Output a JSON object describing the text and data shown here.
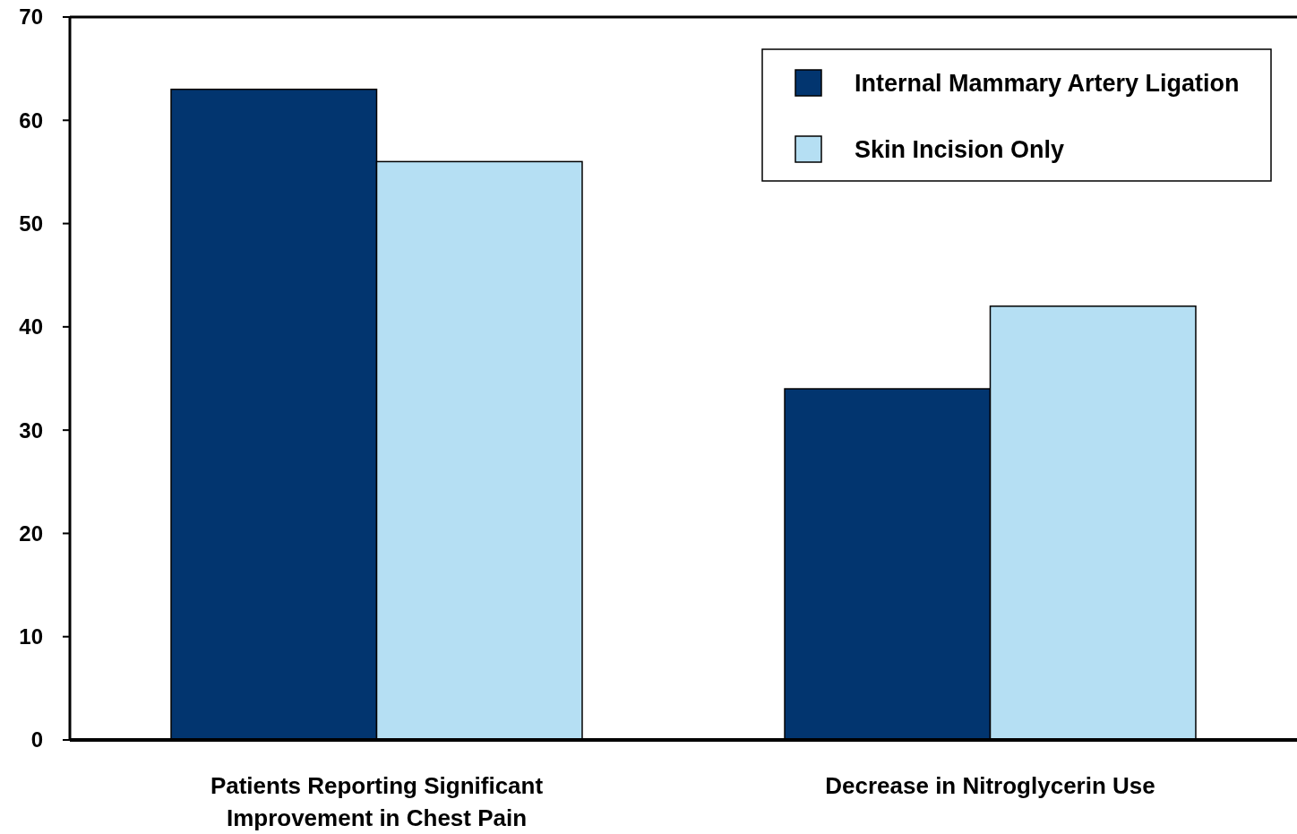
{
  "chart_data": {
    "type": "bar",
    "categories": [
      "Patients Reporting Significant Improvement in Chest Pain",
      "Decrease in Nitroglycerin Use"
    ],
    "series": [
      {
        "name": "Internal Mammary Artery Ligation",
        "color": "#02356f",
        "values": [
          63,
          34
        ]
      },
      {
        "name": "Skin Incision Only",
        "color": "#b5dff3",
        "values": [
          56,
          42
        ]
      }
    ],
    "ylim": [
      0,
      70
    ],
    "yticks": [
      0,
      10,
      20,
      30,
      40,
      50,
      60,
      70
    ],
    "grid": false,
    "legend": "top right"
  }
}
